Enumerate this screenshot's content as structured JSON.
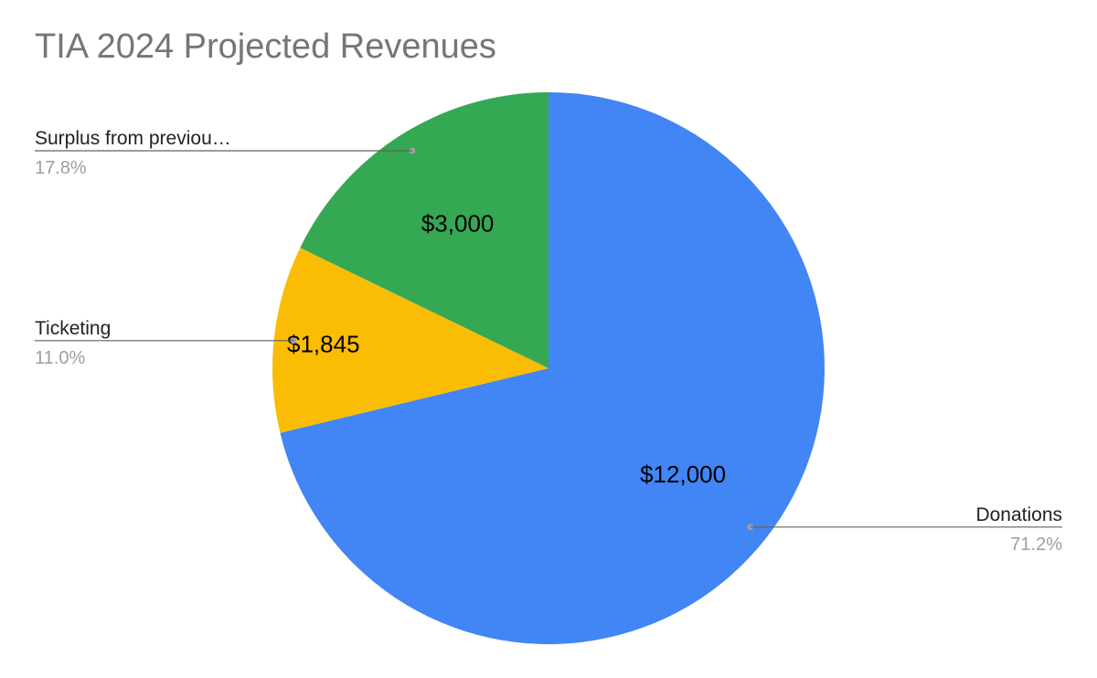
{
  "chart_data": {
    "type": "pie",
    "title": "TIA 2024 Projected Revenues",
    "slices": [
      {
        "label": "Donations",
        "value": 12000,
        "value_label": "$12,000",
        "percent_label": "71.2%",
        "color": "#4285f4"
      },
      {
        "label": "Ticketing",
        "value": 1845,
        "value_label": "$1,845",
        "percent_label": "11.0%",
        "color": "#fbbc04"
      },
      {
        "label": "Surplus from previou…",
        "value": 3000,
        "value_label": "$3,000",
        "percent_label": "17.8%",
        "color": "#34a853"
      }
    ],
    "legend": "none",
    "label_color": "#000000",
    "percent_color": "#9e9e9e",
    "leader_color": "#616161"
  }
}
